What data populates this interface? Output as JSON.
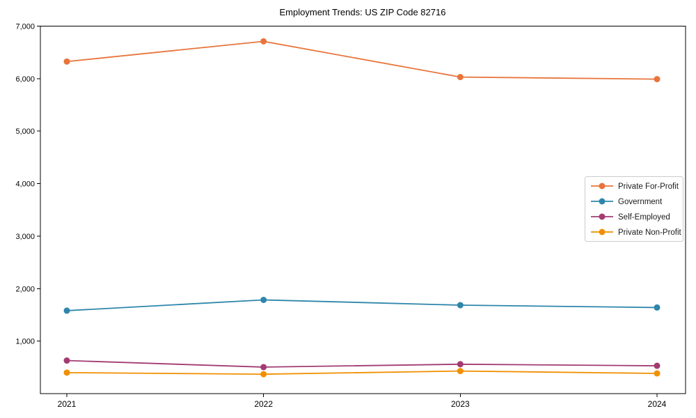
{
  "figure": {
    "title": "Employment Trends: US ZIP Code 82716"
  },
  "chart_data": {
    "type": "line",
    "title": "Employment Trends: US ZIP Code 82716",
    "xlabel": "",
    "ylabel": "",
    "x": [
      "2021",
      "2022",
      "2023",
      "2024"
    ],
    "ylim": [
      0,
      7000
    ],
    "yticks": [
      1000,
      2000,
      3000,
      4000,
      5000,
      6000,
      7000
    ],
    "ytick_labels": [
      "1,000",
      "2,000",
      "3,000",
      "4,000",
      "5,000",
      "6,000",
      "7,000"
    ],
    "grid": false,
    "frame": true,
    "marker": "circle",
    "legend": {
      "position": "center-right",
      "border_color": "#cccccc",
      "background": "#ffffff"
    },
    "series": [
      {
        "name": "Private For-Profit",
        "color": "#E8743B",
        "values": [
          6325,
          6710,
          6030,
          5990
        ]
      },
      {
        "name": "Government",
        "color": "#2E86AB",
        "values": [
          1580,
          1785,
          1685,
          1640
        ]
      },
      {
        "name": "Self-Employed",
        "color": "#A23B72",
        "values": [
          630,
          505,
          560,
          530
        ]
      },
      {
        "name": "Private Non-Profit",
        "color": "#F18F01",
        "values": [
          400,
          370,
          430,
          385
        ]
      }
    ]
  }
}
